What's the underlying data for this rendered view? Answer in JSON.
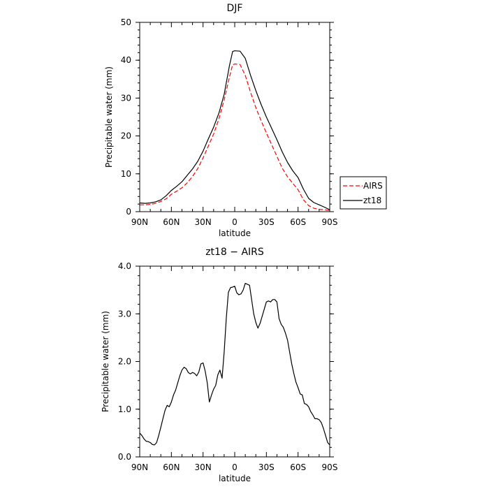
{
  "chart_data": [
    {
      "type": "line",
      "title": "DJF",
      "xlabel": "latitude",
      "ylabel": "Precipitable water (mm)",
      "xlim": [
        90,
        -90
      ],
      "ylim": [
        0,
        50
      ],
      "xticks": [
        {
          "value": 90,
          "label": "90N"
        },
        {
          "value": 60,
          "label": "60N"
        },
        {
          "value": 30,
          "label": "30N"
        },
        {
          "value": 0,
          "label": "0"
        },
        {
          "value": -30,
          "label": "30S"
        },
        {
          "value": -60,
          "label": "60S"
        },
        {
          "value": -90,
          "label": "90S"
        }
      ],
      "yticks": [
        {
          "value": 0,
          "label": "0"
        },
        {
          "value": 10,
          "label": "10"
        },
        {
          "value": 20,
          "label": "20"
        },
        {
          "value": 30,
          "label": "30"
        },
        {
          "value": 40,
          "label": "40"
        },
        {
          "value": 50,
          "label": "50"
        }
      ],
      "legend_position": "outside-right",
      "series": [
        {
          "name": "AIRS",
          "color": "#ff0000",
          "dashed": true,
          "x": [
            90,
            85,
            80,
            75,
            70,
            65,
            60,
            55,
            50,
            45,
            40,
            35,
            30,
            25,
            20,
            15,
            10,
            5,
            2,
            0,
            -5,
            -10,
            -15,
            -20,
            -25,
            -30,
            -35,
            -40,
            -45,
            -50,
            -55,
            -60,
            -65,
            -70,
            -75,
            -80,
            -85,
            -90
          ],
          "y": [
            1.8,
            1.8,
            1.9,
            2.2,
            2.7,
            3.4,
            4.6,
            5.4,
            6.3,
            7.6,
            9.3,
            11.4,
            14.2,
            17.3,
            20.5,
            24.5,
            29.5,
            35.5,
            38.8,
            39.0,
            38.9,
            36.0,
            31.5,
            27.5,
            24.0,
            20.8,
            17.7,
            14.6,
            11.5,
            9.2,
            7.5,
            5.8,
            3.2,
            1.6,
            0.9,
            0.6,
            0.5,
            0.3
          ]
        },
        {
          "name": "zt18",
          "color": "#000000",
          "dashed": false,
          "x": [
            90,
            85,
            80,
            75,
            70,
            65,
            60,
            55,
            50,
            45,
            40,
            35,
            30,
            25,
            20,
            15,
            10,
            5,
            2,
            0,
            -5,
            -10,
            -15,
            -20,
            -25,
            -30,
            -35,
            -40,
            -45,
            -50,
            -55,
            -60,
            -65,
            -70,
            -75,
            -80,
            -85,
            -90
          ],
          "y": [
            2.3,
            2.2,
            2.3,
            2.6,
            3.1,
            4.2,
            5.6,
            6.7,
            7.9,
            9.6,
            11.3,
            13.3,
            16.0,
            19.2,
            22.3,
            26.0,
            31.0,
            38.5,
            42.3,
            42.5,
            42.4,
            40.5,
            36.0,
            32.0,
            28.3,
            25.0,
            22.0,
            19.0,
            15.8,
            13.0,
            10.8,
            9.0,
            6.0,
            3.5,
            2.4,
            1.8,
            1.2,
            0.5
          ]
        }
      ]
    },
    {
      "type": "line",
      "title": "zt18 − AIRS",
      "xlabel": "latitude",
      "ylabel": "Precipitable water (mm)",
      "xlim": [
        90,
        -90
      ],
      "ylim": [
        0,
        4
      ],
      "xticks": [
        {
          "value": 90,
          "label": "90N"
        },
        {
          "value": 60,
          "label": "60N"
        },
        {
          "value": 30,
          "label": "30N"
        },
        {
          "value": 0,
          "label": "0"
        },
        {
          "value": -30,
          "label": "30S"
        },
        {
          "value": -60,
          "label": "60S"
        },
        {
          "value": -90,
          "label": "90S"
        }
      ],
      "yticks": [
        {
          "value": 0,
          "label": "0.0"
        },
        {
          "value": 1,
          "label": "1.0"
        },
        {
          "value": 2,
          "label": "2.0"
        },
        {
          "value": 3,
          "label": "3.0"
        },
        {
          "value": 4,
          "label": "4.0"
        }
      ],
      "series": [
        {
          "color": "#000000",
          "dashed": false,
          "x": [
            90,
            88,
            86,
            84,
            82,
            80,
            78,
            76,
            74,
            72,
            70,
            68,
            66,
            64,
            62,
            60,
            58,
            56,
            54,
            52,
            50,
            48,
            46,
            44,
            42,
            40,
            38,
            36,
            34,
            32,
            30,
            28,
            26,
            24,
            22,
            20,
            18,
            16,
            14,
            12,
            10,
            8,
            6,
            4,
            2,
            0,
            -2,
            -4,
            -6,
            -8,
            -10,
            -12,
            -14,
            -16,
            -18,
            -20,
            -22,
            -24,
            -26,
            -28,
            -30,
            -32,
            -34,
            -36,
            -38,
            -40,
            -42,
            -44,
            -46,
            -48,
            -50,
            -52,
            -54,
            -56,
            -58,
            -60,
            -62,
            -64,
            -66,
            -68,
            -70,
            -72,
            -74,
            -76,
            -78,
            -80,
            -82,
            -84,
            -86,
            -88,
            -90
          ],
          "y": [
            0.5,
            0.45,
            0.38,
            0.33,
            0.32,
            0.3,
            0.26,
            0.25,
            0.3,
            0.45,
            0.62,
            0.8,
            0.98,
            1.08,
            1.05,
            1.15,
            1.3,
            1.4,
            1.55,
            1.7,
            1.82,
            1.88,
            1.85,
            1.77,
            1.74,
            1.77,
            1.75,
            1.7,
            1.78,
            1.95,
            1.97,
            1.8,
            1.55,
            1.15,
            1.3,
            1.42,
            1.5,
            1.72,
            1.82,
            1.65,
            2.2,
            2.9,
            3.45,
            3.55,
            3.56,
            3.58,
            3.44,
            3.4,
            3.42,
            3.5,
            3.64,
            3.62,
            3.6,
            3.3,
            3.0,
            2.82,
            2.7,
            2.8,
            2.95,
            3.1,
            3.25,
            3.27,
            3.25,
            3.3,
            3.3,
            3.25,
            2.9,
            2.78,
            2.72,
            2.6,
            2.45,
            2.2,
            1.95,
            1.75,
            1.57,
            1.45,
            1.32,
            1.3,
            1.12,
            1.1,
            1.05,
            0.95,
            0.88,
            0.8,
            0.8,
            0.78,
            0.72,
            0.6,
            0.45,
            0.3,
            0.25
          ]
        }
      ]
    }
  ]
}
